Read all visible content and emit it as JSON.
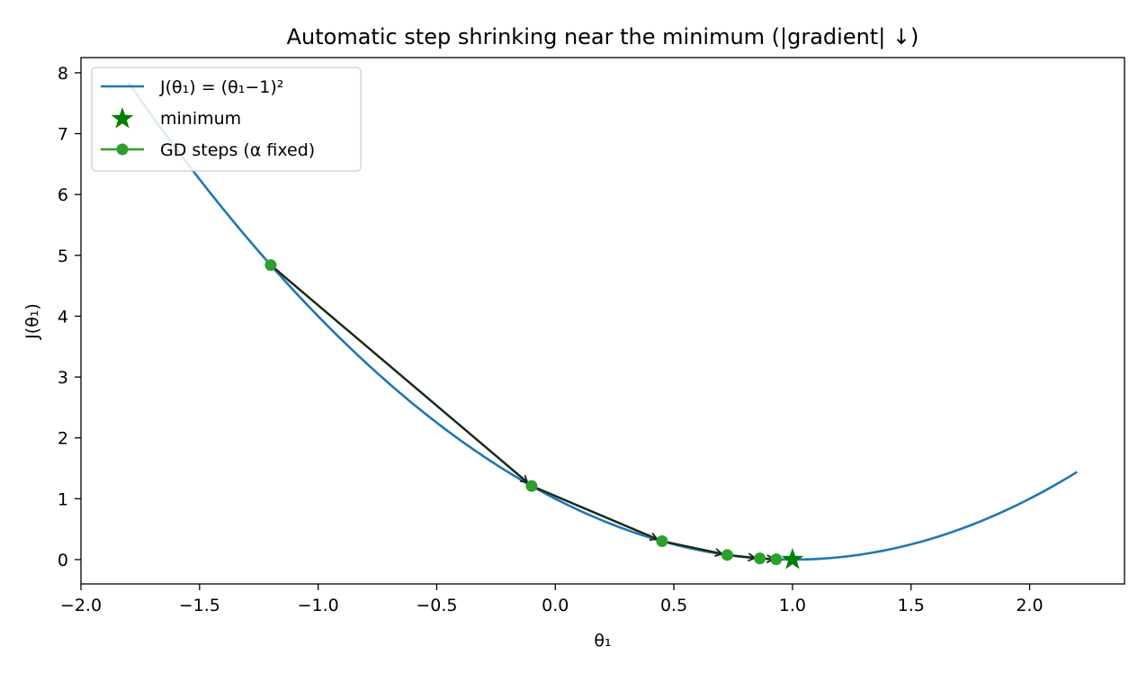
{
  "chart_data": {
    "type": "line",
    "title": "Automatic step shrinking near the minimum (|gradient| ↓)",
    "xlabel": "θ₁",
    "ylabel": "J(θ₁)",
    "xlim": [
      -2.0,
      2.4
    ],
    "ylim": [
      -0.4,
      8.25
    ],
    "xticks": [
      -2.0,
      -1.5,
      -1.0,
      -0.5,
      0.0,
      0.5,
      1.0,
      1.5,
      2.0
    ],
    "xtick_labels": [
      "−2.0",
      "−1.5",
      "−1.0",
      "−0.5",
      "0.0",
      "0.5",
      "1.0",
      "1.5",
      "2.0"
    ],
    "yticks": [
      0,
      1,
      2,
      3,
      4,
      5,
      6,
      7,
      8
    ],
    "ytick_labels": [
      "0",
      "1",
      "2",
      "3",
      "4",
      "5",
      "6",
      "7",
      "8"
    ],
    "grid": false,
    "legend_position": "top-left",
    "series": [
      {
        "name": "J(θ₁) = (θ₁−1)²",
        "kind": "curve",
        "color": "#1f77b4",
        "x_range": [
          -1.8,
          2.2
        ],
        "function": "(x-1)^2"
      },
      {
        "name": "minimum",
        "kind": "marker",
        "marker": "star",
        "color": "#008000",
        "x": [
          1.0
        ],
        "y": [
          0.0
        ]
      },
      {
        "name": "GD steps (α fixed)",
        "kind": "line-markers",
        "color": "#2ca02c",
        "x": [
          -1.2,
          -0.1,
          0.45,
          0.725,
          0.8625,
          0.93125
        ],
        "y": [
          4.84,
          1.21,
          0.3025,
          0.075625,
          0.018906,
          0.004727
        ]
      }
    ],
    "arrows": {
      "color": "#222222",
      "description_from_series": "GD steps (α fixed)"
    }
  }
}
